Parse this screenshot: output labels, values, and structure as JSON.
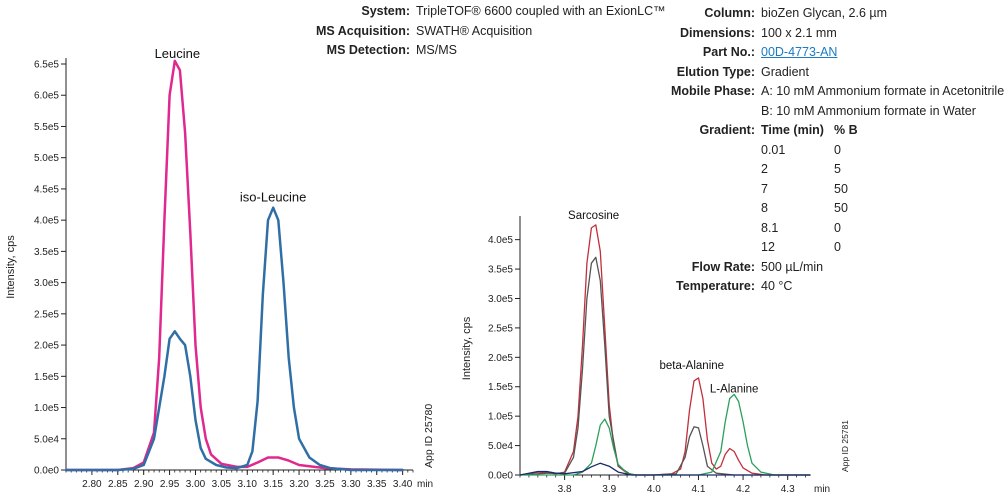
{
  "system_info": [
    {
      "key": "System:",
      "value": "TripleTOF® 6600 coupled with an ExionLC™"
    },
    {
      "key": "MS Acquisition:",
      "value": "SWATH® Acquisition"
    },
    {
      "key": "MS Detection:",
      "value": "MS/MS"
    }
  ],
  "method": {
    "column_label": "Column:",
    "column": "bioZen Glycan, 2.6 µm",
    "dimensions_label": "Dimensions:",
    "dimensions": "100 x 2.1 mm",
    "part_label": "Part No.:",
    "part": "00D-4773-AN",
    "elution_label": "Elution Type:",
    "elution": "Gradient",
    "mobile_label": "Mobile Phase:",
    "mobile_a": "A: 10 mM Ammonium formate in Acetonitrile",
    "mobile_b": "B: 10 mM Ammonium formate in Water",
    "gradient_label": "Gradient:",
    "gradient_time_header": "Time (min)",
    "gradient_b_header": "% B",
    "gradient": [
      {
        "time": "0.01",
        "b": "0"
      },
      {
        "time": "2",
        "b": "5"
      },
      {
        "time": "7",
        "b": "50"
      },
      {
        "time": "8",
        "b": "50"
      },
      {
        "time": "8.1",
        "b": "0"
      },
      {
        "time": "12",
        "b": "0"
      }
    ],
    "flow_label": "Flow Rate:",
    "flow": "500 µL/min",
    "temp_label": "Temperature:",
    "temp": "40 °C"
  },
  "colors": {
    "magenta": "#e0288f",
    "blue": "#2f6fa6",
    "red": "#c0303c",
    "dark": "#555555",
    "green": "#2ba05a",
    "navy": "#1a2a6a"
  },
  "chart_data": [
    {
      "type": "line",
      "title": "",
      "xlabel": "min",
      "ylabel": "Intensity, cps",
      "xlim": [
        2.75,
        3.42
      ],
      "ylim": [
        0,
        650000
      ],
      "xticks": [
        "2.80",
        "2.85",
        "2.90",
        "2.95",
        "3.00",
        "3.05",
        "3.10",
        "3.15",
        "3.20",
        "3.25",
        "3.30",
        "3.35",
        "3.40"
      ],
      "yticks": [
        "0.0e0",
        "5.0e4",
        "1.0e5",
        "1.5e5",
        "2.0e5",
        "2.5e5",
        "3.0e5",
        "3.5e5",
        "4.0e5",
        "4.5e5",
        "5.0e5",
        "5.5e5",
        "6.0e5",
        "6.5e5"
      ],
      "annotations": [
        {
          "text": "Leucine",
          "x": 2.965,
          "y": 660000
        },
        {
          "text": "iso-Leucine",
          "x": 3.15,
          "y": 430000
        }
      ],
      "app_id": "App ID 25780",
      "series": [
        {
          "color": "#e0288f",
          "x": [
            2.75,
            2.85,
            2.88,
            2.9,
            2.92,
            2.93,
            2.94,
            2.95,
            2.96,
            2.97,
            2.98,
            2.99,
            3.0,
            3.01,
            3.02,
            3.03,
            3.05,
            3.08,
            3.1,
            3.12,
            3.14,
            3.16,
            3.18,
            3.2,
            3.25,
            3.3,
            3.4
          ],
          "y": [
            0,
            0,
            3000,
            12000,
            60000,
            180000,
            400000,
            600000,
            655000,
            640000,
            540000,
            380000,
            200000,
            100000,
            50000,
            25000,
            10000,
            5000,
            5000,
            12000,
            20000,
            20000,
            15000,
            8000,
            3000,
            1000,
            0
          ]
        },
        {
          "color": "#2f6fa6",
          "x": [
            2.75,
            2.85,
            2.88,
            2.9,
            2.92,
            2.94,
            2.95,
            2.96,
            2.97,
            2.98,
            2.99,
            3.0,
            3.01,
            3.02,
            3.04,
            3.06,
            3.08,
            3.1,
            3.11,
            3.12,
            3.13,
            3.14,
            3.15,
            3.16,
            3.17,
            3.18,
            3.19,
            3.2,
            3.22,
            3.24,
            3.26,
            3.3,
            3.4
          ],
          "y": [
            0,
            0,
            2000,
            8000,
            50000,
            150000,
            210000,
            222000,
            210000,
            200000,
            150000,
            80000,
            35000,
            18000,
            8000,
            4000,
            3000,
            8000,
            30000,
            110000,
            280000,
            400000,
            420000,
            400000,
            300000,
            180000,
            100000,
            50000,
            20000,
            8000,
            3000,
            0,
            0
          ]
        }
      ]
    },
    {
      "type": "line",
      "title": "",
      "xlabel": "min",
      "ylabel": "Intensity, cps",
      "xlim": [
        3.7,
        4.35
      ],
      "ylim": [
        0,
        430000
      ],
      "xticks": [
        "3.8",
        "3.9",
        "4.0",
        "4.1",
        "4.2",
        "4.3"
      ],
      "yticks": [
        "0.0e0",
        "5.0e4",
        "1.0e5",
        "1.5e5",
        "2.0e5",
        "2.5e5",
        "3.0e5",
        "3.5e5",
        "4.0e5"
      ],
      "annotations": [
        {
          "text": "Sarcosine",
          "x": 3.865,
          "y": 435000
        },
        {
          "text": "beta-Alanine",
          "x": 4.085,
          "y": 180000
        },
        {
          "text": "L-Alanine",
          "x": 4.18,
          "y": 140000
        }
      ],
      "app_id": "App ID 25781",
      "series": [
        {
          "color": "#c0303c",
          "x": [
            3.7,
            3.74,
            3.76,
            3.78,
            3.8,
            3.82,
            3.83,
            3.84,
            3.85,
            3.86,
            3.87,
            3.88,
            3.89,
            3.9,
            3.91,
            3.92,
            3.94,
            3.96,
            4.0,
            4.04,
            4.06,
            4.07,
            4.08,
            4.09,
            4.1,
            4.11,
            4.12,
            4.13,
            4.14,
            4.15,
            4.16,
            4.17,
            4.18,
            4.19,
            4.2,
            4.22,
            4.25,
            4.35
          ],
          "y": [
            0,
            5000,
            4000,
            2000,
            5000,
            40000,
            100000,
            220000,
            360000,
            420000,
            425000,
            380000,
            250000,
            120000,
            50000,
            15000,
            3000,
            0,
            0,
            2000,
            10000,
            40000,
            110000,
            160000,
            165000,
            130000,
            60000,
            20000,
            10000,
            15000,
            35000,
            45000,
            40000,
            25000,
            12000,
            3000,
            0,
            0
          ]
        },
        {
          "color": "#555555",
          "x": [
            3.7,
            3.76,
            3.8,
            3.82,
            3.83,
            3.84,
            3.85,
            3.86,
            3.87,
            3.88,
            3.89,
            3.9,
            3.92,
            3.95,
            4.0,
            4.05,
            4.07,
            4.08,
            4.09,
            4.1,
            4.11,
            4.12,
            4.14,
            4.18,
            4.35
          ],
          "y": [
            0,
            3000,
            3000,
            30000,
            80000,
            180000,
            300000,
            360000,
            370000,
            330000,
            220000,
            100000,
            15000,
            0,
            0,
            2000,
            30000,
            65000,
            82000,
            80000,
            50000,
            15000,
            3000,
            0,
            0
          ]
        },
        {
          "color": "#2ba05a",
          "x": [
            3.7,
            3.82,
            3.84,
            3.86,
            3.87,
            3.88,
            3.89,
            3.9,
            3.91,
            3.92,
            3.94,
            3.96,
            4.1,
            4.13,
            4.15,
            4.16,
            4.17,
            4.18,
            4.19,
            4.2,
            4.21,
            4.22,
            4.24,
            4.27,
            4.35
          ],
          "y": [
            0,
            0,
            5000,
            20000,
            50000,
            85000,
            95000,
            80000,
            45000,
            18000,
            3000,
            0,
            0,
            5000,
            40000,
            90000,
            130000,
            137000,
            125000,
            90000,
            50000,
            20000,
            5000,
            0,
            0
          ]
        },
        {
          "color": "#1a2a6a",
          "x": [
            3.7,
            3.74,
            3.76,
            3.78,
            3.8,
            3.84,
            3.86,
            3.88,
            3.9,
            3.92,
            3.95,
            4.0,
            4.35
          ],
          "y": [
            0,
            6000,
            6000,
            3000,
            2000,
            6000,
            14000,
            20000,
            15000,
            5000,
            0,
            0,
            0
          ]
        }
      ]
    }
  ]
}
